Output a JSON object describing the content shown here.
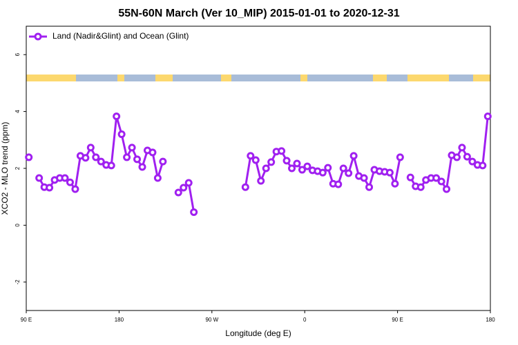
{
  "chart_data": {
    "type": "line",
    "title": "55N-60N March (Ver 10_MIP)   2015-01-01 to 2020-12-31",
    "x_label": "Longitude (deg E)",
    "y_label": "XCO2 - MLO trend (ppm)",
    "xlim": [
      90,
      540
    ],
    "ylim": [
      -3,
      7
    ],
    "xticks": [
      {
        "value": 90,
        "label": "90 E"
      },
      180,
      {
        "value": 270,
        "label": "90 W"
      },
      {
        "value": 360,
        "label": "0"
      },
      {
        "value": 450,
        "label": "90 E"
      },
      {
        "value": 540,
        "label": "180"
      }
    ],
    "yticks": [
      -2,
      0,
      2,
      4,
      6
    ],
    "legend": "topleft",
    "x": [
      92.5,
      97.5,
      102.5,
      107.5,
      112.5,
      117.5,
      122.5,
      127.5,
      132.5,
      137.5,
      142.5,
      147.5,
      152.5,
      157.5,
      162.5,
      167.5,
      172.5,
      177.5,
      182.5,
      187.5,
      192.5,
      197.5,
      202.5,
      207.5,
      212.5,
      217.5,
      222.5,
      227.5,
      237.5,
      242.5,
      247.5,
      252.5,
      257.5,
      302.5,
      307.5,
      312.5,
      317.5,
      322.5,
      327.5,
      332.5,
      337.5,
      342.5,
      347.5,
      352.5,
      357.5,
      362.5,
      367.5,
      372.5,
      377.5,
      382.5,
      387.5,
      392.5,
      397.5,
      402.5,
      407.5,
      412.5,
      417.5,
      422.5,
      427.5,
      432.5,
      437.5,
      442.5,
      447.5,
      452.5,
      457.5,
      462.5,
      467.5,
      472.5,
      477.5,
      482.5,
      487.5,
      492.5,
      497.5,
      502.5,
      507.5,
      512.5,
      517.5,
      522.5,
      527.5,
      532.5,
      537.5
    ],
    "series": [
      {
        "name": "Land (Nadir&Glint) and Ocean (Glint)",
        "color": "#a020f0",
        "values": [
          2.39,
          null,
          1.66,
          1.34,
          1.32,
          1.59,
          1.66,
          1.66,
          1.51,
          1.27,
          2.44,
          2.37,
          2.73,
          2.39,
          2.24,
          2.12,
          2.1,
          3.83,
          3.2,
          2.39,
          2.73,
          2.32,
          2.05,
          2.63,
          2.56,
          1.66,
          2.24,
          null,
          1.15,
          1.32,
          1.49,
          0.46,
          null,
          1.34,
          2.44,
          2.29,
          1.56,
          2.0,
          2.22,
          2.59,
          2.61,
          2.27,
          2.0,
          2.17,
          1.95,
          2.07,
          1.93,
          1.9,
          1.85,
          2.02,
          1.46,
          1.44,
          2.0,
          1.83,
          2.44,
          1.73,
          1.66,
          1.34,
          1.95,
          1.9,
          1.88,
          1.85,
          1.46,
          2.39,
          null,
          1.68,
          1.37,
          1.34,
          1.59,
          1.66,
          1.66,
          1.54,
          1.27,
          2.46,
          2.39,
          2.73,
          2.41,
          2.24,
          2.12,
          2.1,
          3.83
        ]
      }
    ]
  }
}
